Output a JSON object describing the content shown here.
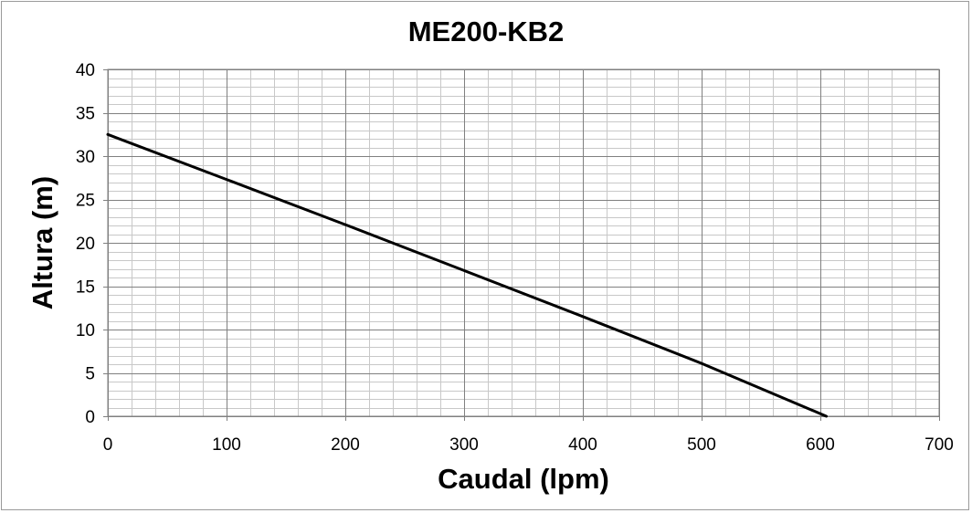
{
  "chart_data": {
    "type": "line",
    "title": "ME200-KB2",
    "xlabel": "Caudal (lpm)",
    "ylabel": "Altura (m)",
    "xlim": [
      0,
      700
    ],
    "ylim": [
      0,
      40
    ],
    "x_ticks": [
      "0",
      "100",
      "200",
      "300",
      "400",
      "500",
      "600",
      "700"
    ],
    "y_ticks": [
      "0",
      "5",
      "10",
      "15",
      "20",
      "25",
      "30",
      "35",
      "40"
    ],
    "x_major_step": 100,
    "x_minor_step": 20,
    "y_major_step": 5,
    "y_minor_step": 1,
    "grid": true,
    "legend": "none",
    "series": [
      {
        "color": "#000000",
        "x": [
          0,
          100,
          200,
          300,
          400,
          500,
          605
        ],
        "y": [
          32.5,
          27.3,
          22.1,
          16.8,
          11.5,
          6.1,
          0
        ]
      }
    ]
  }
}
